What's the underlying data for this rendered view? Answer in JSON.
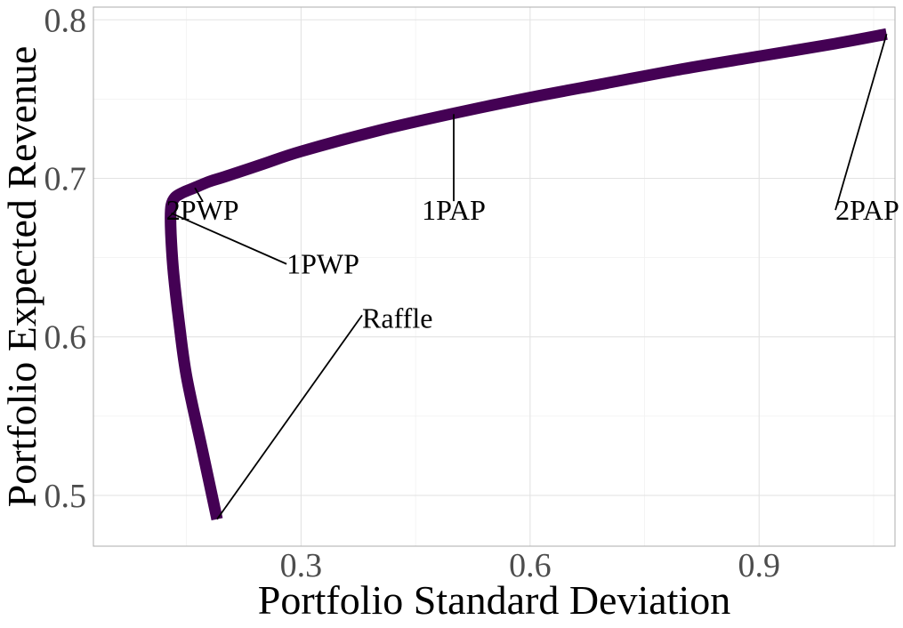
{
  "chart_data": {
    "type": "line",
    "xlabel": "Portfolio Standard Deviation",
    "ylabel": "Portfolio Expected Revenue",
    "xlim": [
      0.028,
      1.078
    ],
    "ylim": [
      0.468,
      0.808
    ],
    "x_ticks": [
      0.3,
      0.6,
      0.9
    ],
    "x_tick_labels": [
      "0.3",
      "0.6",
      "0.9"
    ],
    "y_ticks": [
      0.5,
      0.6,
      0.7,
      0.8
    ],
    "y_tick_labels": [
      "0.5",
      "0.6",
      "0.7",
      "0.8"
    ],
    "grid": true,
    "line_color": "#440154",
    "series": [
      {
        "x": [
          0.19,
          0.17,
          0.15,
          0.14,
          0.133,
          0.13,
          0.129,
          0.13,
          0.135,
          0.145,
          0.16,
          0.18,
          0.2,
          0.25,
          0.3,
          0.4,
          0.5,
          0.6,
          0.7,
          0.8,
          0.9,
          1.0,
          1.067
        ],
        "y": [
          0.485,
          0.53,
          0.575,
          0.61,
          0.64,
          0.66,
          0.675,
          0.683,
          0.688,
          0.691,
          0.694,
          0.698,
          0.701,
          0.709,
          0.717,
          0.73,
          0.741,
          0.751,
          0.76,
          0.769,
          0.777,
          0.785,
          0.791
        ]
      }
    ],
    "annotations": [
      {
        "text": "2PWP",
        "point": [
          0.161,
          0.694
        ],
        "label_at": [
          0.171,
          0.68
        ]
      },
      {
        "text": "1PAP",
        "point": [
          0.5,
          0.7405
        ],
        "label_at": [
          0.5,
          0.68
        ]
      },
      {
        "text": "2PAP",
        "point": [
          1.067,
          0.791
        ],
        "label_at": [
          1.0,
          0.68
        ]
      },
      {
        "text": "1PWP",
        "point": [
          0.13,
          0.678
        ],
        "label_at": [
          0.281,
          0.646
        ]
      },
      {
        "text": "Raffle",
        "point": [
          0.19,
          0.485
        ],
        "label_at": [
          0.38,
          0.612
        ]
      }
    ]
  }
}
